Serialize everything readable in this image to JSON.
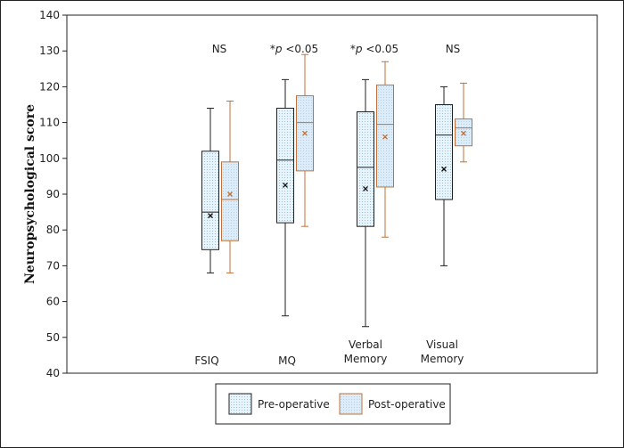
{
  "chart_data": {
    "type": "box",
    "ylabel": "Neuropsychological score",
    "ylim": [
      40,
      140
    ],
    "yticks": [
      40,
      50,
      60,
      70,
      80,
      90,
      100,
      110,
      120,
      130,
      140
    ],
    "categories": [
      {
        "lines": [
          "FSIQ"
        ]
      },
      {
        "lines": [
          "MQ"
        ]
      },
      {
        "lines": [
          "Verbal",
          "Memory"
        ]
      },
      {
        "lines": [
          "Visual",
          "Memory"
        ]
      }
    ],
    "significance": [
      {
        "prefix": "",
        "italic": "",
        "suffix": "NS"
      },
      {
        "prefix": "*",
        "italic": "p",
        "suffix": " <0.05"
      },
      {
        "prefix": "*",
        "italic": "p",
        "suffix": " <0.05"
      },
      {
        "prefix": "",
        "italic": "",
        "suffix": "NS"
      }
    ],
    "series": [
      {
        "name": "Pre-operative",
        "stroke": "#222222",
        "fill": "#e8f4fb",
        "dot": "#8fb6cf",
        "mean_color": "#111111",
        "boxes": [
          {
            "min": 68,
            "q1": 74.5,
            "median": 85,
            "q3": 102,
            "max": 114,
            "mean": 84
          },
          {
            "min": 56,
            "q1": 82,
            "median": 99.5,
            "q3": 114,
            "max": 122,
            "mean": 92.5
          },
          {
            "min": 53,
            "q1": 81,
            "median": 97.5,
            "q3": 113,
            "max": 122,
            "mean": 91.5
          },
          {
            "min": 70,
            "q1": 88.5,
            "median": 106.5,
            "q3": 115,
            "max": 120,
            "mean": 97
          }
        ]
      },
      {
        "name": "Post-operative",
        "stroke": "#c0703a",
        "fill": "#dcecf8",
        "dot": "#a9c9e0",
        "mean_color": "#c0703a",
        "boxes": [
          {
            "min": 68,
            "q1": 77,
            "median": 88.5,
            "q3": 99,
            "max": 116,
            "mean": 90
          },
          {
            "min": 81,
            "q1": 96.5,
            "median": 110,
            "q3": 117.5,
            "max": 129,
            "mean": 107
          },
          {
            "min": 78,
            "q1": 92,
            "median": 109.5,
            "q3": 120.5,
            "max": 127,
            "mean": 106
          },
          {
            "min": 99,
            "q1": 103.5,
            "median": 108.5,
            "q3": 111,
            "max": 121,
            "mean": 107
          }
        ]
      }
    ],
    "legend": {
      "position": "bottom-center"
    }
  }
}
